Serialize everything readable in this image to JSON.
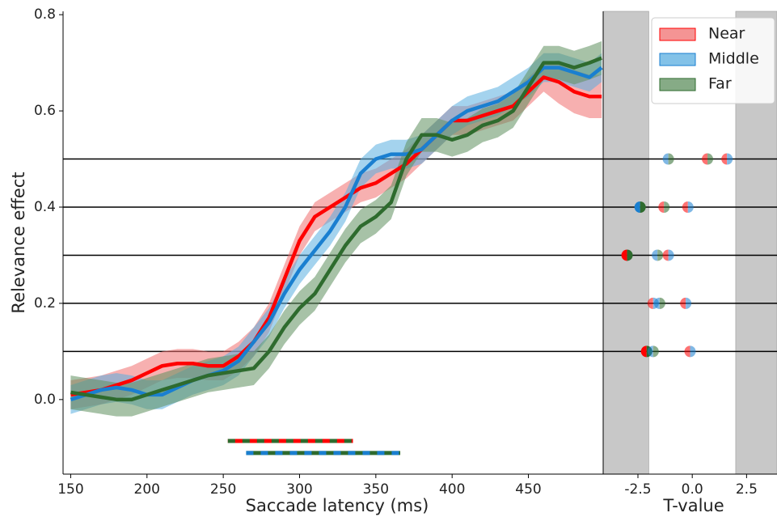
{
  "chart_data": [
    {
      "type": "line",
      "xlabel": "Saccade latency (ms)",
      "ylabel": "Relevance effect",
      "xlim": [
        145,
        499
      ],
      "ylim": [
        -0.155,
        0.807
      ],
      "xticks": [
        150,
        200,
        250,
        300,
        350,
        400,
        450
      ],
      "yticks": [
        {
          "value": 0,
          "label": "0.0"
        },
        0.2,
        0.4,
        0.6,
        0.8
      ],
      "hlines": [
        0.1,
        0.2,
        0.3,
        0.4,
        0.5
      ],
      "legend": "upper right",
      "x": [
        150,
        160,
        170,
        180,
        190,
        200,
        210,
        220,
        230,
        240,
        250,
        260,
        270,
        280,
        290,
        300,
        310,
        320,
        330,
        340,
        350,
        360,
        370,
        380,
        390,
        400,
        410,
        420,
        430,
        440,
        450,
        460,
        470,
        480,
        490,
        498
      ],
      "series": [
        {
          "name": "Near",
          "color": "#ff0000",
          "band_color": "#f07070",
          "values": [
            0.01,
            0.015,
            0.02,
            0.03,
            0.04,
            0.055,
            0.07,
            0.075,
            0.075,
            0.07,
            0.07,
            0.09,
            0.12,
            0.17,
            0.25,
            0.33,
            0.38,
            0.4,
            0.42,
            0.44,
            0.45,
            0.47,
            0.49,
            0.52,
            0.55,
            0.58,
            0.58,
            0.59,
            0.6,
            0.61,
            0.64,
            0.67,
            0.66,
            0.64,
            0.63,
            0.63
          ],
          "lower": [
            -0.02,
            -0.015,
            -0.01,
            0.0,
            0.01,
            0.025,
            0.04,
            0.045,
            0.045,
            0.04,
            0.04,
            0.06,
            0.09,
            0.14,
            0.22,
            0.3,
            0.35,
            0.37,
            0.39,
            0.41,
            0.42,
            0.44,
            0.46,
            0.49,
            0.52,
            0.55,
            0.55,
            0.56,
            0.57,
            0.58,
            0.61,
            0.64,
            0.615,
            0.595,
            0.585,
            0.585
          ],
          "upper": [
            0.04,
            0.045,
            0.05,
            0.06,
            0.07,
            0.085,
            0.1,
            0.105,
            0.105,
            0.1,
            0.1,
            0.12,
            0.15,
            0.2,
            0.28,
            0.36,
            0.41,
            0.43,
            0.45,
            0.47,
            0.48,
            0.5,
            0.52,
            0.55,
            0.58,
            0.61,
            0.61,
            0.62,
            0.63,
            0.64,
            0.67,
            0.7,
            0.705,
            0.685,
            0.675,
            0.675
          ]
        },
        {
          "name": "Middle",
          "color": "#1a7fd0",
          "band_color": "#5aaee0",
          "values": [
            0.0,
            0.01,
            0.02,
            0.025,
            0.02,
            0.01,
            0.01,
            0.025,
            0.04,
            0.05,
            0.06,
            0.08,
            0.12,
            0.16,
            0.22,
            0.27,
            0.31,
            0.35,
            0.4,
            0.47,
            0.5,
            0.51,
            0.51,
            0.52,
            0.55,
            0.58,
            0.6,
            0.61,
            0.62,
            0.64,
            0.66,
            0.69,
            0.69,
            0.68,
            0.67,
            0.69
          ],
          "lower": [
            -0.03,
            -0.02,
            -0.01,
            -0.005,
            -0.01,
            -0.02,
            -0.02,
            -0.005,
            0.01,
            0.02,
            0.03,
            0.05,
            0.09,
            0.13,
            0.19,
            0.24,
            0.28,
            0.32,
            0.37,
            0.44,
            0.47,
            0.48,
            0.48,
            0.49,
            0.52,
            0.55,
            0.57,
            0.58,
            0.59,
            0.61,
            0.63,
            0.66,
            0.66,
            0.65,
            0.64,
            0.66
          ],
          "upper": [
            0.03,
            0.04,
            0.05,
            0.055,
            0.05,
            0.04,
            0.04,
            0.055,
            0.07,
            0.08,
            0.09,
            0.11,
            0.15,
            0.19,
            0.25,
            0.3,
            0.34,
            0.38,
            0.43,
            0.5,
            0.53,
            0.54,
            0.54,
            0.55,
            0.58,
            0.61,
            0.63,
            0.64,
            0.65,
            0.67,
            0.69,
            0.72,
            0.72,
            0.71,
            0.7,
            0.72
          ]
        },
        {
          "name": "Far",
          "color": "#2e6b2e",
          "band_color": "#5e8f5e",
          "values": [
            0.015,
            0.01,
            0.005,
            0.0,
            0.0,
            0.01,
            0.02,
            0.03,
            0.04,
            0.05,
            0.055,
            0.06,
            0.065,
            0.1,
            0.15,
            0.19,
            0.22,
            0.27,
            0.32,
            0.36,
            0.38,
            0.41,
            0.5,
            0.55,
            0.55,
            0.54,
            0.55,
            0.57,
            0.58,
            0.6,
            0.65,
            0.7,
            0.7,
            0.69,
            0.7,
            0.71
          ],
          "lower": [
            -0.02,
            -0.025,
            -0.03,
            -0.035,
            -0.035,
            -0.025,
            -0.015,
            -0.005,
            0.005,
            0.015,
            0.02,
            0.025,
            0.03,
            0.065,
            0.115,
            0.155,
            0.185,
            0.235,
            0.285,
            0.325,
            0.345,
            0.375,
            0.465,
            0.515,
            0.515,
            0.505,
            0.515,
            0.535,
            0.545,
            0.565,
            0.615,
            0.665,
            0.665,
            0.655,
            0.665,
            0.675
          ],
          "upper": [
            0.05,
            0.045,
            0.04,
            0.035,
            0.035,
            0.045,
            0.055,
            0.065,
            0.075,
            0.085,
            0.09,
            0.095,
            0.1,
            0.135,
            0.185,
            0.225,
            0.255,
            0.305,
            0.355,
            0.395,
            0.415,
            0.445,
            0.535,
            0.585,
            0.585,
            0.575,
            0.585,
            0.605,
            0.615,
            0.635,
            0.685,
            0.735,
            0.735,
            0.725,
            0.735,
            0.745
          ]
        }
      ],
      "sig_bars": [
        {
          "y": -0.086,
          "x": [
            253,
            335
          ],
          "colors": [
            "#ff0000",
            "#2e6b2e"
          ]
        },
        {
          "y": -0.111,
          "x": [
            265,
            366
          ],
          "colors": [
            "#2e6b2e",
            "#1a7fd0"
          ]
        }
      ]
    },
    {
      "type": "scatter",
      "xlabel": "T-value",
      "xlim": [
        -4.1,
        3.9
      ],
      "xticks": [
        -2.5,
        {
          "value": 0,
          "label": "0.0"
        },
        2.5
      ],
      "shade": [
        [
          -4.1,
          -2.0
        ],
        [
          2.0,
          3.9
        ]
      ],
      "x": [
        -1.1,
        0.7,
        1.6,
        -2.4,
        -1.3,
        -0.2,
        -3.0,
        -1.6,
        -1.1,
        -1.8,
        -1.5,
        -0.3,
        -2.1,
        -1.8,
        -0.1
      ],
      "y": [
        0.5,
        0.5,
        0.5,
        0.4,
        0.4,
        0.4,
        0.3,
        0.3,
        0.3,
        0.2,
        0.2,
        0.2,
        0.1,
        0.1,
        0.1
      ],
      "point_colors": [
        [
          "#1a7fd0",
          "#2e6b2e"
        ],
        [
          "#ff0000",
          "#2e6b2e"
        ],
        [
          "#ff0000",
          "#1a7fd0"
        ],
        [
          "#1a7fd0",
          "#2e6b2e"
        ],
        [
          "#ff0000",
          "#2e6b2e"
        ],
        [
          "#ff0000",
          "#1a7fd0"
        ],
        [
          "#ff0000",
          "#2e6b2e"
        ],
        [
          "#1a7fd0",
          "#2e6b2e"
        ],
        [
          "#ff0000",
          "#1a7fd0"
        ],
        [
          "#ff0000",
          "#1a7fd0"
        ],
        [
          "#1a7fd0",
          "#2e6b2e"
        ],
        [
          "#ff0000",
          "#1a7fd0"
        ],
        [
          "#ff0000",
          "#2e6b2e"
        ],
        [
          "#1a7fd0",
          "#2e6b2e"
        ],
        [
          "#ff0000",
          "#1a7fd0"
        ]
      ]
    }
  ]
}
